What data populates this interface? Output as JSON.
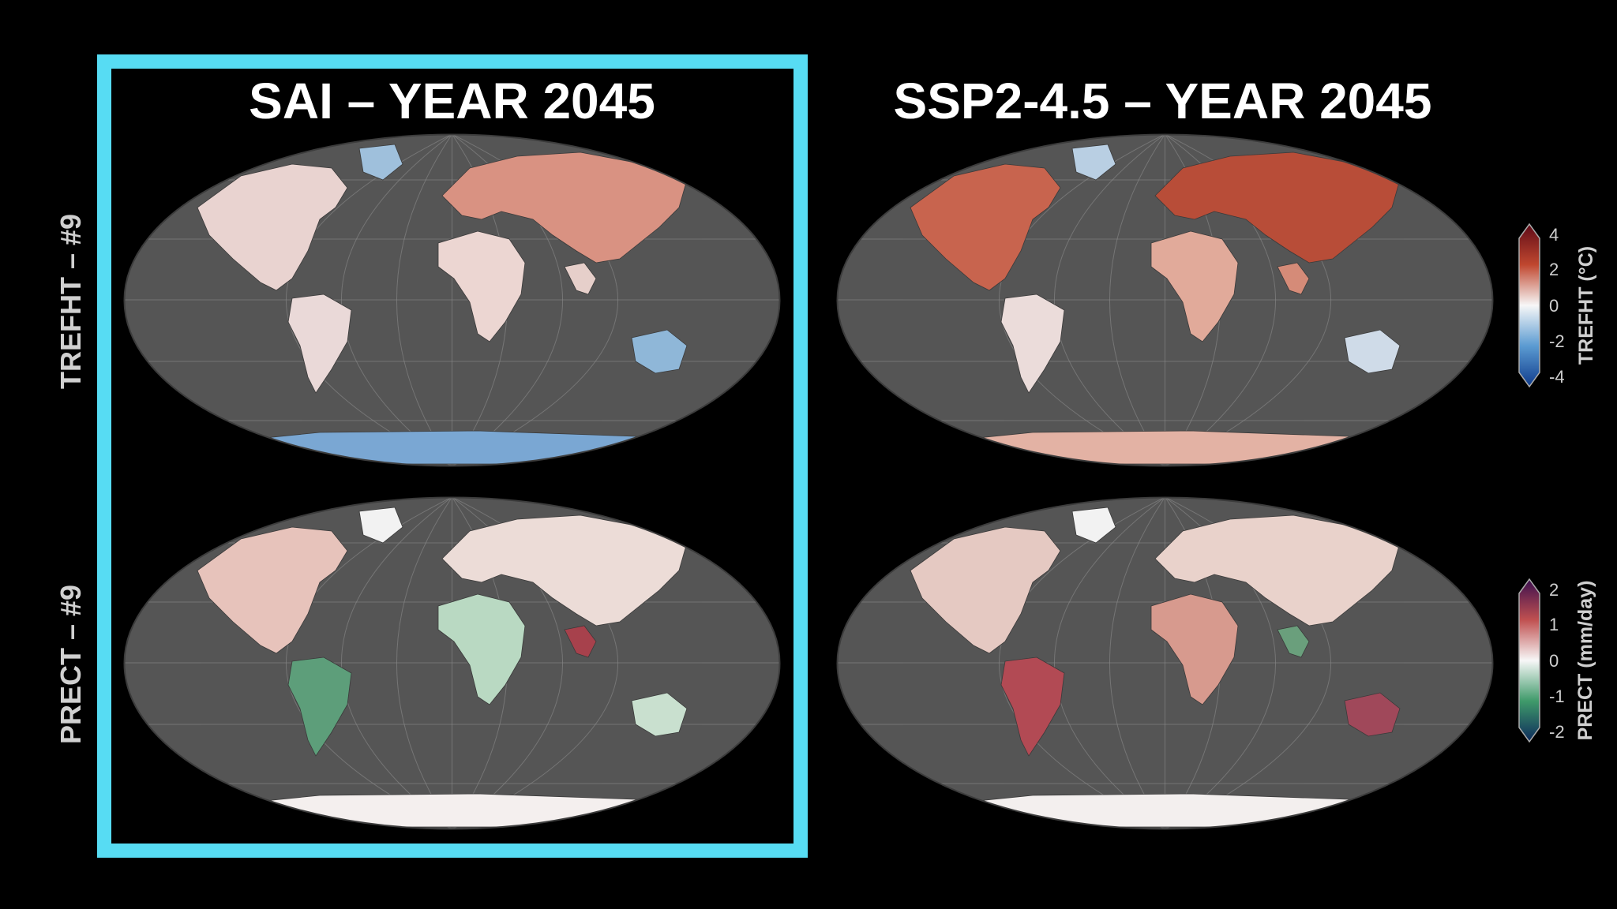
{
  "titles": {
    "left": "SAI – YEAR 2045",
    "right": "SSP2-4.5 – YEAR 2045"
  },
  "row_labels": {
    "top": "TREFHT – #9",
    "bottom": "PRECT – #9"
  },
  "colorbars": {
    "temperature": {
      "label": "TREFHT (°C)",
      "ticks": [
        "4",
        "2",
        "0",
        "-2",
        "-4"
      ],
      "colors": [
        "#5e0a17",
        "#c0472f",
        "#f7f7f7",
        "#5b9bd2",
        "#0f3b8c"
      ]
    },
    "precipitation": {
      "label": "PRECT (mm/day)",
      "ticks": [
        "2",
        "1",
        "0",
        "-1",
        "-2"
      ],
      "colors": [
        "#3b0f4f",
        "#c05050",
        "#f7f7f7",
        "#3f9a6a",
        "#0d2a5c"
      ]
    }
  },
  "colors": {
    "highlight_border": "#57dcf3",
    "ocean": "#555555",
    "background": "#000000"
  }
}
